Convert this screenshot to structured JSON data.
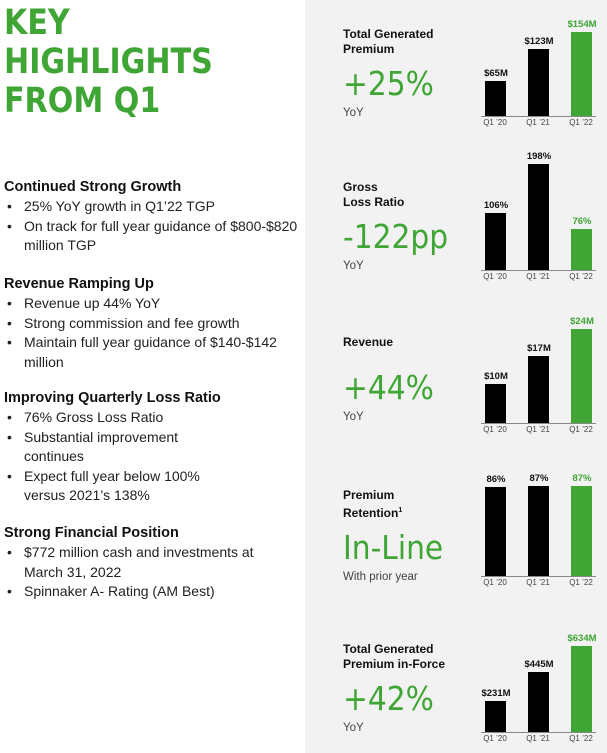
{
  "headline": [
    "KEY",
    "HIGHLIGHTS",
    "FROM Q1"
  ],
  "sections": [
    {
      "title": "Continued Strong Growth",
      "bullets": [
        "25% YoY growth in Q1’22 TGP",
        "On track for full year guidance of $800-$820 million TGP"
      ]
    },
    {
      "title": "Revenue Ramping Up",
      "bullets": [
        "Revenue up 44% YoY",
        "Strong commission and fee growth",
        "Maintain full year guidance of $140-$142 million"
      ]
    },
    {
      "title": "Improving Quarterly Loss Ratio",
      "bullets": [
        "76% Gross Loss Ratio",
        "Substantial improvement continues",
        "Expect full year below 100% versus 2021’s 138%"
      ]
    },
    {
      "title": "Strong Financial Position",
      "bullets": [
        "$772 million cash and investments at March 31, 2022",
        "Spinnaker A- Rating (AM Best)"
      ]
    }
  ],
  "metrics": [
    {
      "label_lines": [
        "Total Generated",
        "Premium"
      ],
      "label_sup": "",
      "big": "+25%",
      "sub": "YoY"
    },
    {
      "label_lines": [
        "Gross",
        "Loss Ratio"
      ],
      "label_sup": "",
      "big": "-122pp",
      "sub": "YoY"
    },
    {
      "label_lines": [
        "Revenue"
      ],
      "label_sup": "",
      "big": "+44%",
      "sub": "YoY"
    },
    {
      "label_lines": [
        "Premium",
        "Retention"
      ],
      "label_sup": "1",
      "big": "In-Line",
      "sub": "With prior year"
    },
    {
      "label_lines": [
        "Total Generated",
        "Premium in-Force"
      ],
      "label_sup": "",
      "big": "+42%",
      "sub": "YoY"
    }
  ],
  "chart_data": [
    {
      "type": "bar",
      "categories": [
        "Q1 ’20",
        "Q1 ’21",
        "Q1 ’22"
      ],
      "values": [
        65,
        123,
        154
      ],
      "data_labels": [
        "$65M",
        "$123M",
        "$154M"
      ],
      "highlight_index": 2,
      "ylim": [
        0,
        154
      ]
    },
    {
      "type": "bar",
      "categories": [
        "Q1 ’20",
        "Q1 ’21",
        "Q1 ’22"
      ],
      "values": [
        106,
        198,
        76
      ],
      "data_labels": [
        "106%",
        "198%",
        "76%"
      ],
      "highlight_index": 2,
      "ylim": [
        0,
        198
      ]
    },
    {
      "type": "bar",
      "categories": [
        "Q1 ’20",
        "Q1 ’21",
        "Q1 ’22"
      ],
      "values": [
        10,
        17,
        24
      ],
      "data_labels": [
        "$10M",
        "$17M",
        "$24M"
      ],
      "highlight_index": 2,
      "ylim": [
        0,
        24
      ]
    },
    {
      "type": "bar",
      "categories": [
        "Q1 ’20",
        "Q1 ’21",
        "Q1 ’22"
      ],
      "values": [
        86,
        87,
        87
      ],
      "data_labels": [
        "86%",
        "87%",
        "87%"
      ],
      "highlight_index": 2,
      "ylim": [
        0,
        87
      ]
    },
    {
      "type": "bar",
      "categories": [
        "Q1 ’20",
        "Q1 ’21",
        "Q1 ’22"
      ],
      "values": [
        231,
        445,
        634
      ],
      "data_labels": [
        "$231M",
        "$445M",
        "$634M"
      ],
      "highlight_index": 2,
      "ylim": [
        0,
        634
      ]
    }
  ],
  "colors": {
    "accent_green": "#3fa535",
    "bar_black": "#000000",
    "panel_gray": "#f2f2f2"
  }
}
